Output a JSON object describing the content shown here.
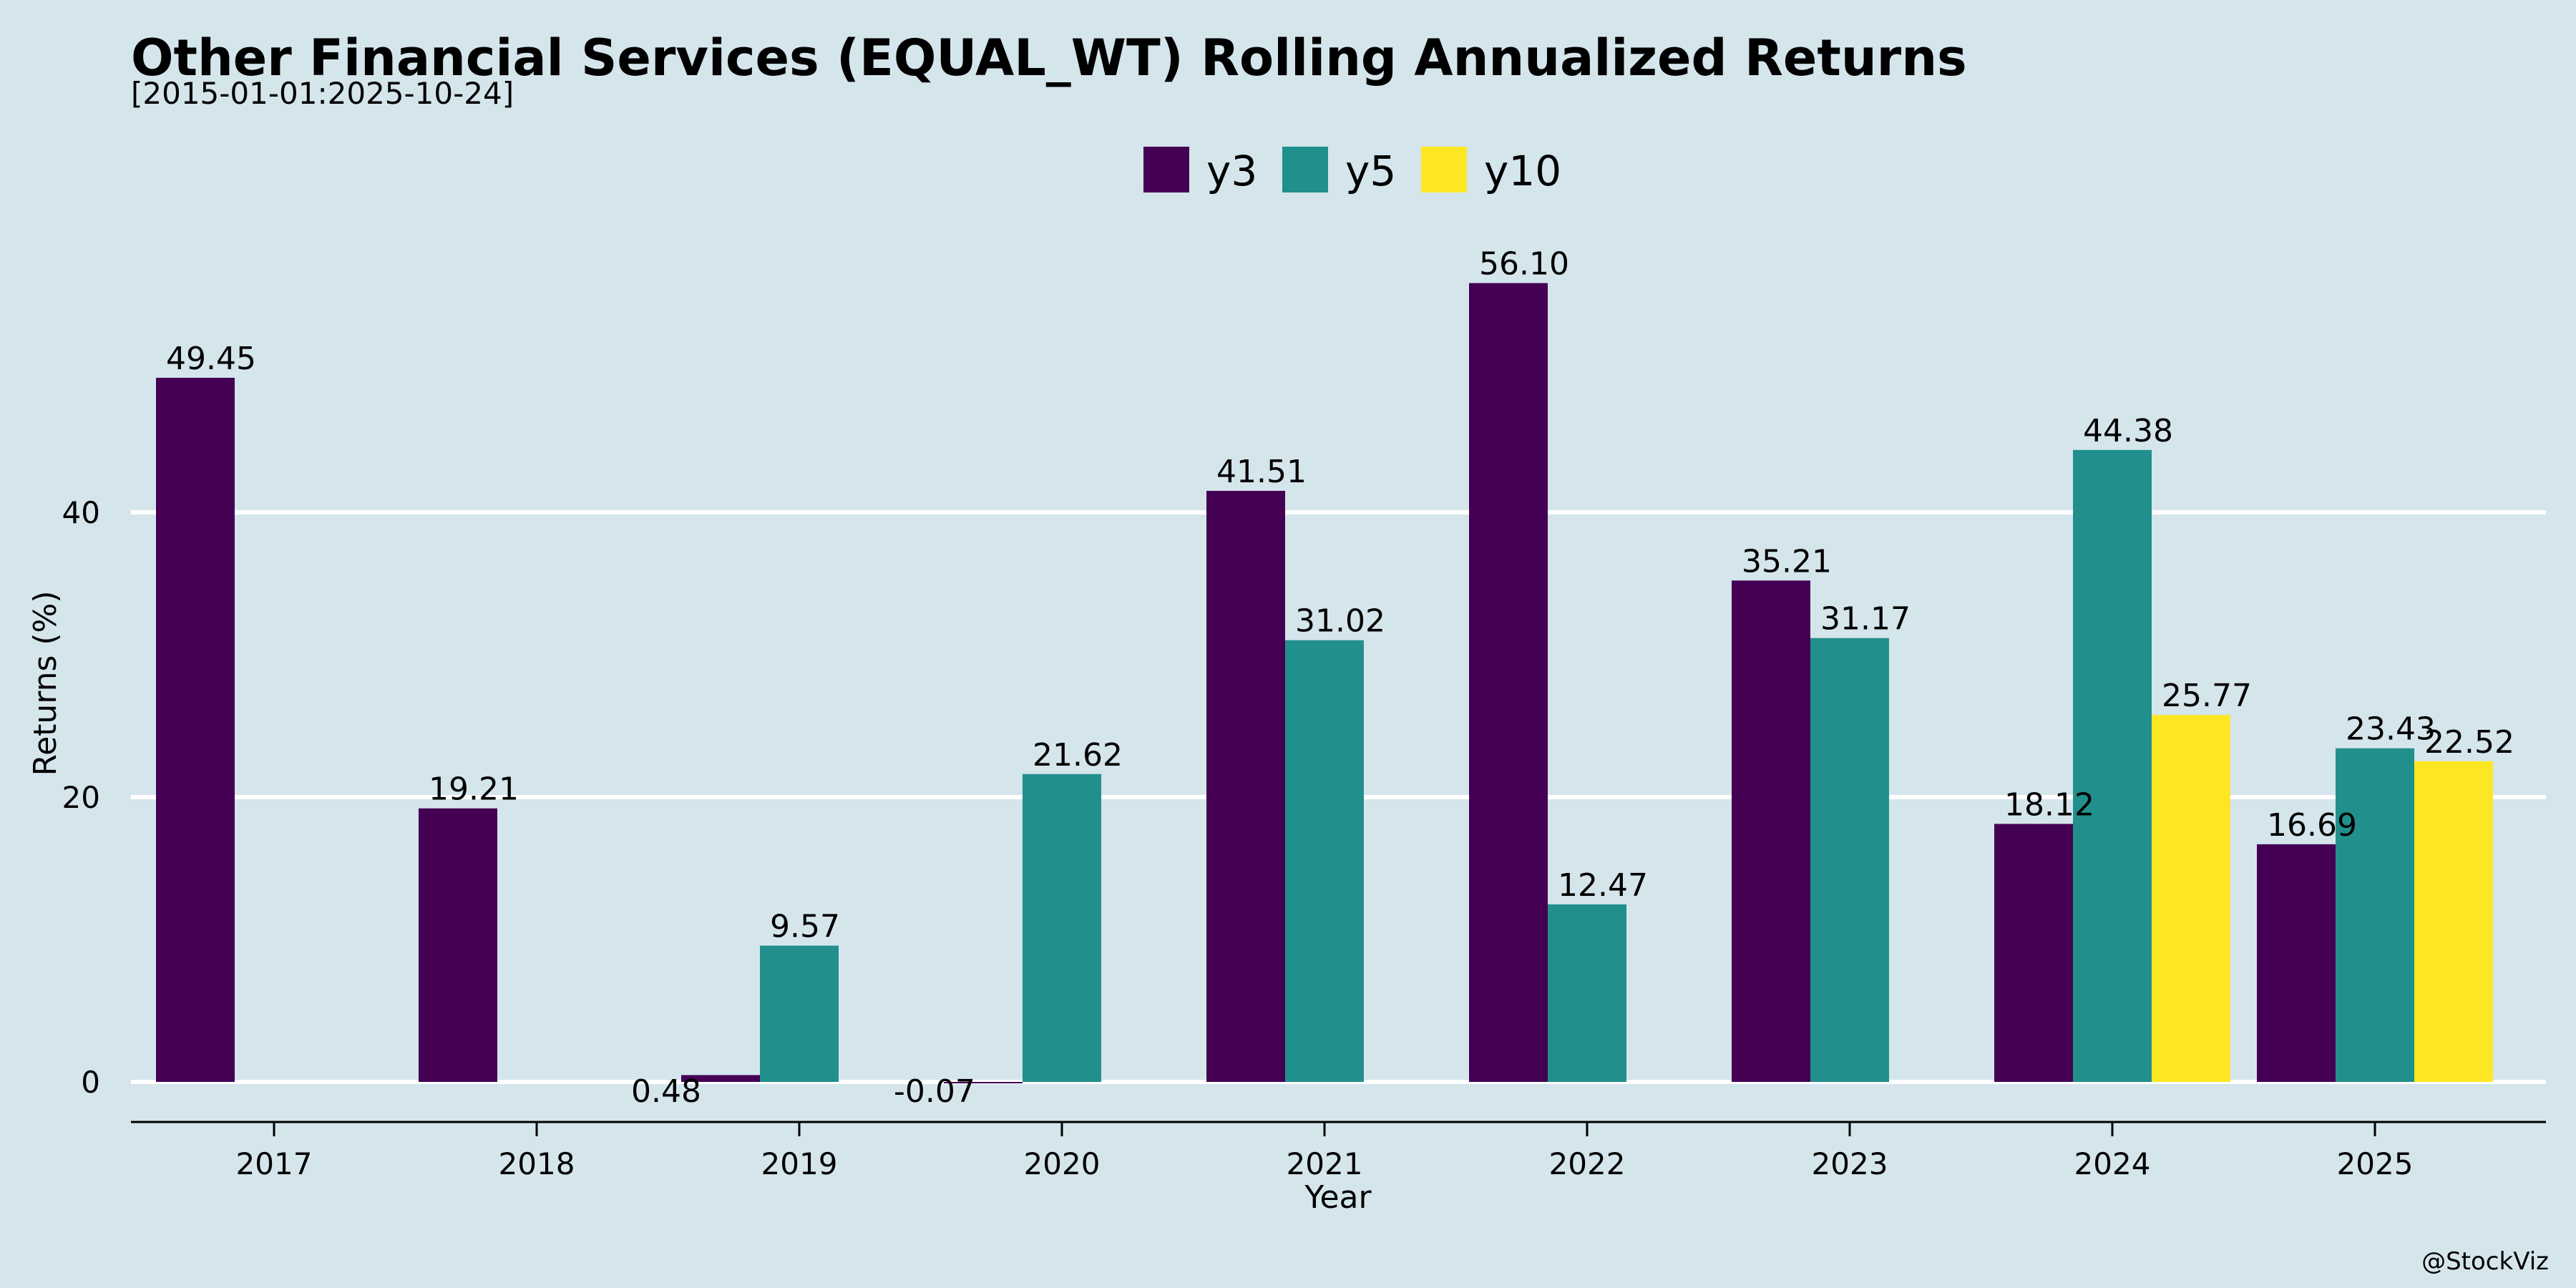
{
  "chart_data": {
    "type": "bar",
    "title": "Other Financial Services (EQUAL_WT) Rolling Annualized Returns",
    "subtitle": "[2015-01-01:2025-10-24]",
    "xlabel": "Year",
    "ylabel": "Returns (%)",
    "categories": [
      "2017",
      "2018",
      "2019",
      "2020",
      "2021",
      "2022",
      "2023",
      "2024",
      "2025"
    ],
    "series": [
      {
        "name": "y3",
        "color": "#440154",
        "values": [
          49.45,
          19.21,
          0.48,
          -0.07,
          41.51,
          56.1,
          35.21,
          18.12,
          16.69
        ]
      },
      {
        "name": "y5",
        "color": "#21908c",
        "values": [
          null,
          null,
          9.57,
          21.62,
          31.02,
          12.47,
          31.17,
          44.38,
          23.43
        ]
      },
      {
        "name": "y10",
        "color": "#fde725",
        "values": [
          null,
          null,
          null,
          null,
          null,
          null,
          null,
          25.77,
          22.52
        ]
      }
    ],
    "yticks": [
      0,
      20,
      40
    ],
    "ylim": [
      -3,
      63
    ],
    "grid": true,
    "legend": "top-center",
    "credit": "@StockViz"
  }
}
